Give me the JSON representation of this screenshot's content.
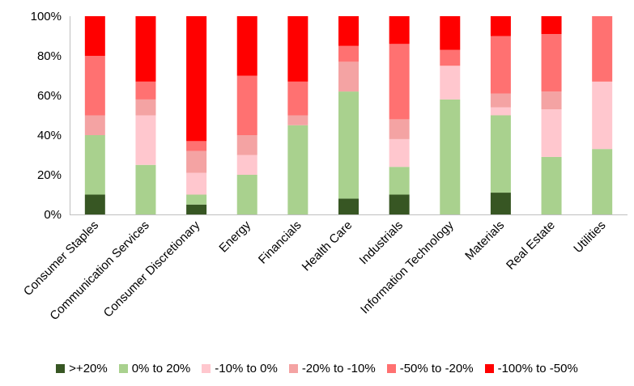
{
  "chart_data": {
    "type": "bar",
    "stacked": true,
    "normalized": true,
    "title": "",
    "xlabel": "",
    "ylabel": "",
    "ylim": [
      0,
      100
    ],
    "yticks": [
      "0%",
      "20%",
      "40%",
      "60%",
      "80%",
      "100%"
    ],
    "grid": false,
    "legend_position": "bottom",
    "categories": [
      "Consumer Staples",
      "Communication Services",
      "Consumer Discretionary",
      "Energy",
      "Financials",
      "Health Care",
      "Industrials",
      "Information Technology",
      "Materials",
      "Real Estate",
      "Utilities"
    ],
    "series": [
      {
        "name": ">+20%",
        "color": "#375623",
        "values": [
          10,
          0,
          5,
          0,
          0,
          8,
          10,
          0,
          11,
          0,
          0
        ]
      },
      {
        "name": "0% to 20%",
        "color": "#A9D18E",
        "values": [
          30,
          25,
          5,
          20,
          45,
          54,
          14,
          58,
          39,
          29,
          33
        ]
      },
      {
        "name": "-10% to 0%",
        "color": "#FFC7CE",
        "values": [
          0,
          25,
          11,
          10,
          0,
          0,
          14,
          17,
          4,
          24,
          34
        ]
      },
      {
        "name": "-20% to -10%",
        "color": "#F4A3A3",
        "values": [
          10,
          8,
          11,
          10,
          5,
          15,
          10,
          0,
          7,
          9,
          0
        ]
      },
      {
        "name": "-50% to -20%",
        "color": "#FF7171",
        "values": [
          30,
          9,
          5,
          30,
          17,
          8,
          38,
          8,
          29,
          29,
          33
        ]
      },
      {
        "name": "-100% to -50%",
        "color": "#FF0000",
        "values": [
          20,
          33,
          63,
          30,
          33,
          15,
          14,
          17,
          10,
          9,
          0
        ]
      }
    ]
  }
}
